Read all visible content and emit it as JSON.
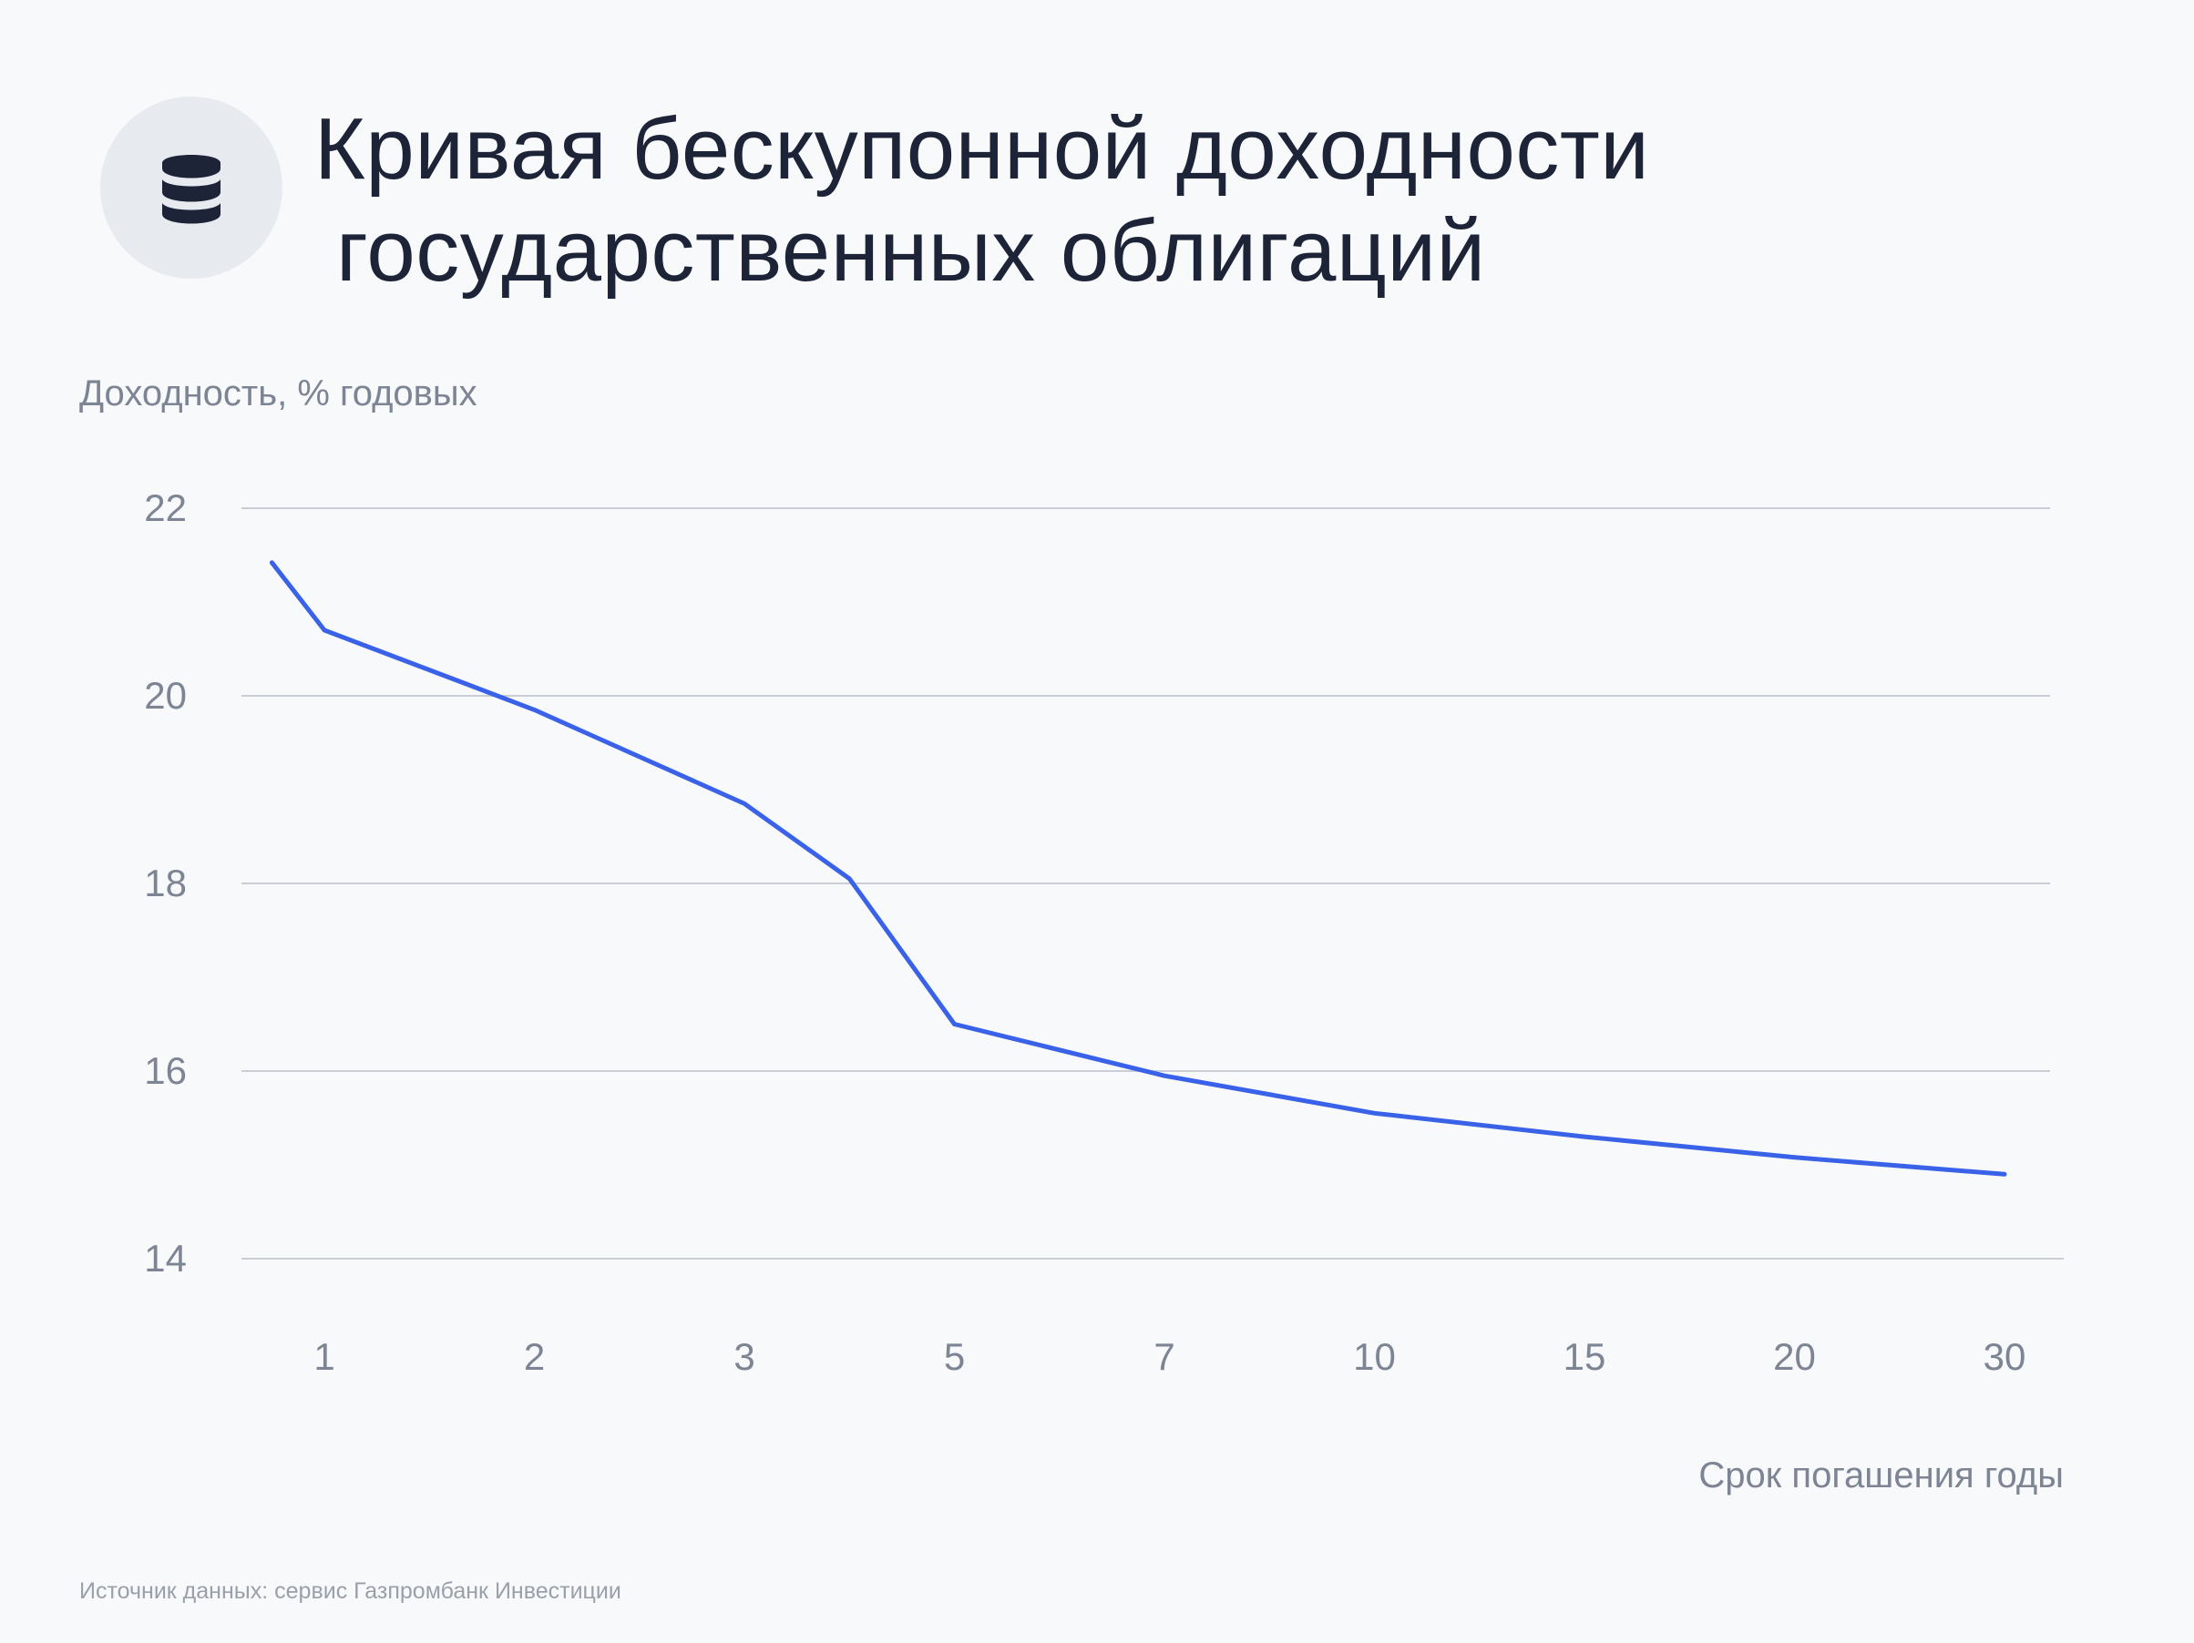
{
  "header": {
    "title_line1": "Кривая бескупонной доходности",
    "title_line2": "государственных облигаций",
    "icon": "database-icon"
  },
  "footer": {
    "source": "Источник данных: сервис Газпромбанк Инвестиции"
  },
  "colors": {
    "line": "#3a62e8",
    "grid": "#c9cdd6",
    "text": "#1d2437",
    "muted": "#7d8493"
  },
  "chart_data": {
    "type": "line",
    "ylabel": "Доходность, % годовых",
    "xlabel": "Срок погашения годы",
    "ylim": [
      14,
      22
    ],
    "yticks": [
      "22",
      "20",
      "18",
      "16",
      "14"
    ],
    "categories": [
      "1",
      "2",
      "3",
      "5",
      "7",
      "10",
      "15",
      "20",
      "30"
    ],
    "grid": true,
    "legend": "none",
    "series": [
      {
        "x": [
          0.75,
          1,
          2,
          3,
          4,
          5,
          7,
          10,
          15,
          20,
          30
        ],
        "values": [
          21.42,
          20.7,
          19.85,
          18.85,
          18.05,
          16.5,
          15.95,
          15.55,
          15.3,
          15.08,
          14.9
        ]
      }
    ]
  }
}
